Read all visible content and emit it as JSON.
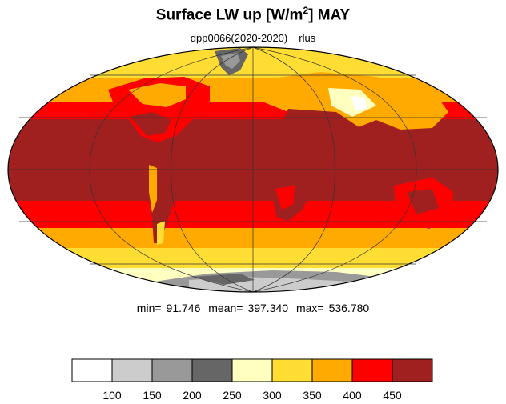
{
  "chart_data": {
    "type": "heatmap",
    "title": "Surface LW up [W/m²]  MAY",
    "title_main": "Surface LW up [W/m",
    "title_sup": "2",
    "title_tail": "]  MAY",
    "subtitle": "dpp0066(2020-2020)",
    "variable": "rlus",
    "projection": "Mollweide",
    "stats": {
      "min_label": "min=",
      "min": "91.746",
      "mean_label": "mean=",
      "mean": "397.340",
      "max_label": "max=",
      "max": "536.780"
    },
    "levels": [
      100,
      150,
      200,
      250,
      300,
      350,
      400,
      450
    ],
    "level_labels": [
      "100",
      "150",
      "200",
      "250",
      "300",
      "350",
      "400",
      "450"
    ],
    "colors": [
      "#ffffff",
      "#cccccc",
      "#999999",
      "#666666",
      "#ffffc0",
      "#ffdd33",
      "#ffaa00",
      "#ff0000",
      "#a02020"
    ]
  }
}
